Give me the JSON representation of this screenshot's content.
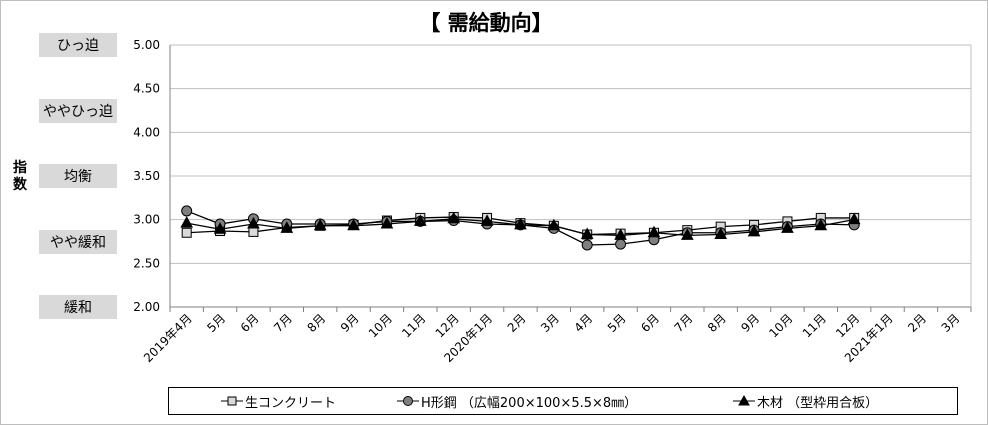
{
  "chart_data": {
    "type": "line",
    "title": "【 需給動向】",
    "ylabel": "指数",
    "ylim": [
      2.0,
      5.0
    ],
    "yticks": [
      "5.00",
      "4.50",
      "4.00",
      "3.50",
      "3.00",
      "2.50",
      "2.00"
    ],
    "grid": true,
    "legend_position": "bottom",
    "bands": [
      {
        "label": "ひっ迫",
        "value": 5.0
      },
      {
        "label": "ややひっ迫",
        "value": 4.25
      },
      {
        "label": "均衡",
        "value": 3.5
      },
      {
        "label": "やや緩和",
        "value": 2.75
      },
      {
        "label": "緩和",
        "value": 2.0
      }
    ],
    "categories": [
      "2019年4月",
      "5月",
      "6月",
      "7月",
      "8月",
      "9月",
      "10月",
      "11月",
      "12月",
      "2020年1月",
      "2月",
      "3月",
      "4月",
      "5月",
      "6月",
      "7月",
      "8月",
      "9月",
      "10月",
      "11月",
      "12月",
      "2021年1月",
      "2月",
      "3月"
    ],
    "series": [
      {
        "name": "生コンクリート",
        "marker": "square",
        "color": "#d9d9d9",
        "values": [
          2.85,
          2.87,
          2.86,
          2.91,
          2.93,
          2.94,
          2.99,
          3.02,
          3.03,
          3.02,
          2.96,
          2.93,
          2.83,
          2.84,
          2.85,
          2.88,
          2.92,
          2.94,
          2.98,
          3.02,
          3.02,
          null,
          null,
          null
        ]
      },
      {
        "name": "H形鋼 （広幅200×100×5.5×8㎜）",
        "marker": "circle",
        "color": "#7f7f7f",
        "values": [
          3.1,
          2.95,
          3.01,
          2.95,
          2.95,
          2.95,
          2.98,
          2.98,
          2.99,
          2.95,
          2.94,
          2.9,
          2.71,
          2.72,
          2.77,
          2.85,
          2.85,
          2.88,
          2.92,
          2.95,
          2.94,
          null,
          null,
          null
        ]
      },
      {
        "name": "木材 （型枠用合板）",
        "marker": "triangle",
        "color": "#000000",
        "values": [
          2.96,
          2.89,
          2.95,
          2.9,
          2.93,
          2.93,
          2.95,
          2.98,
          3.01,
          2.98,
          2.94,
          2.93,
          2.83,
          2.82,
          2.85,
          2.82,
          2.83,
          2.86,
          2.9,
          2.93,
          3.0,
          null,
          null,
          null
        ]
      }
    ]
  }
}
